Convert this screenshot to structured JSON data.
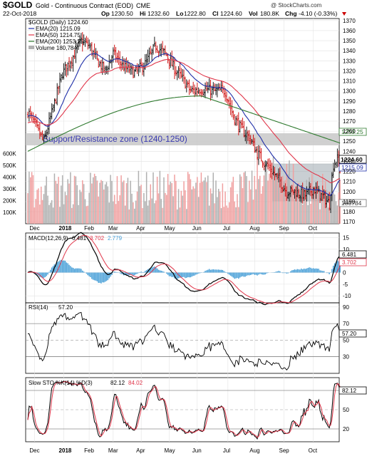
{
  "header": {
    "symbol": "$GOLD",
    "name": "Gold - Continuous Contract (EOD)",
    "exchange": "CME",
    "date": "22-Oct-2018",
    "open_label": "Op",
    "open": "1230.50",
    "high_label": "Hi",
    "high": "1232.60",
    "low_label": "Lo",
    "low": "1222.80",
    "close_label": "Cl",
    "close": "1224.60",
    "vol_label": "Vol",
    "vol": "180.8K",
    "chg_label": "Chg",
    "chg": "-4.10 (-0.33%)",
    "watermark": "@ StockCharts.com"
  },
  "legend": {
    "price": "$GOLD (Daily) 1224.60",
    "ema20": "EMA(20) 1215.09",
    "ema50": "EMA(50) 1214.75",
    "ema200": "EMA(200) 1253.25",
    "volume": "Volume 180,784"
  },
  "annotation": "Support/Resistance zone (1240-1250)",
  "badges": {
    "close": "1224.60",
    "ema200": "1253.25",
    "ema20": "1215.09",
    "volume": "180784",
    "macd": "6.481",
    "signal": "3.702",
    "rsi": "57.20",
    "sto": "82.12"
  },
  "panels": {
    "macd_label": "MACD(12,26,9)",
    "macd_v1": "6.481",
    "macd_v2": "3.702",
    "macd_v3": "2.779",
    "rsi_label": "RSI(14)",
    "rsi_v": "57.20",
    "sto_label": "Slow STO %K(14) %D(3)",
    "sto_k": "82.12",
    "sto_d": "84.02"
  },
  "colors": {
    "up": "#000000",
    "down": "#cc0000",
    "ema20": "#1f2fa8",
    "ema50": "#e0364a",
    "ema200": "#2f7a2f",
    "zone": "#c8c8c8",
    "vol_up": "#b0b0b0",
    "vol_down": "#f0a0a0",
    "macd_hist": "#4aa0d8",
    "box": "#9aa2aa"
  },
  "chart_data": [
    {
      "type": "candlestick",
      "title": "$GOLD Gold - Continuous Contract (EOD) CME",
      "x_tick_labels": [
        "Dec",
        "2018",
        "Feb",
        "Mar",
        "Apr",
        "May",
        "Jun",
        "Jul",
        "Aug",
        "Sep",
        "Oct"
      ],
      "y_tick_labels": [
        "1170",
        "1180",
        "1190",
        "1200",
        "1210",
        "1220",
        "1230",
        "1240",
        "1250",
        "1260",
        "1270",
        "1280",
        "1290",
        "1300",
        "1310",
        "1320",
        "1330",
        "1340",
        "1350",
        "1360",
        "1370"
      ],
      "ylim": [
        1168,
        1372
      ],
      "annotation_zone": [
        1240,
        1250
      ],
      "approx_close_path": [
        {
          "x": "Dec",
          "y": 1280
        },
        {
          "x": "mid-Dec",
          "y": 1245
        },
        {
          "x": "2018",
          "y": 1305
        },
        {
          "x": "late-Jan",
          "y": 1345
        },
        {
          "x": "Feb",
          "y": 1330
        },
        {
          "x": "Mar",
          "y": 1325
        },
        {
          "x": "Apr",
          "y": 1340
        },
        {
          "x": "May",
          "y": 1305
        },
        {
          "x": "Jun",
          "y": 1300
        },
        {
          "x": "Jul",
          "y": 1245
        },
        {
          "x": "Aug",
          "y": 1200
        },
        {
          "x": "Sep",
          "y": 1200
        },
        {
          "x": "Oct",
          "y": 1195
        },
        {
          "x": "22-Oct",
          "y": 1224.6
        }
      ],
      "series": [
        {
          "name": "EMA(20)",
          "last": 1215.09
        },
        {
          "name": "EMA(50)",
          "last": 1214.75
        },
        {
          "name": "EMA(200)",
          "last": 1253.25
        }
      ],
      "volume_axis": [
        "100K",
        "200K",
        "300K",
        "400K",
        "500K",
        "600K"
      ],
      "volume_last": 180784
    },
    {
      "type": "line",
      "title": "MACD(12,26,9)",
      "y_tick_labels": [
        "-10",
        "-5",
        "0",
        "5",
        "10",
        "15"
      ],
      "ylim": [
        -13,
        17
      ],
      "series": [
        {
          "name": "MACD",
          "last": 6.481
        },
        {
          "name": "Signal",
          "last": 3.702
        },
        {
          "name": "Histogram",
          "last": 2.779
        }
      ]
    },
    {
      "type": "line",
      "title": "RSI(14)",
      "y_tick_labels": [
        "30",
        "50",
        "70",
        "90"
      ],
      "ylim": [
        10,
        95
      ],
      "series": [
        {
          "name": "RSI(14)",
          "last": 57.2
        }
      ]
    },
    {
      "type": "line",
      "title": "Slow STO %K(14) %D(3)",
      "y_tick_labels": [
        "20",
        "50",
        "80"
      ],
      "ylim": [
        0,
        100
      ],
      "series": [
        {
          "name": "%K",
          "last": 82.12
        },
        {
          "name": "%D",
          "last": 84.02
        }
      ]
    }
  ]
}
